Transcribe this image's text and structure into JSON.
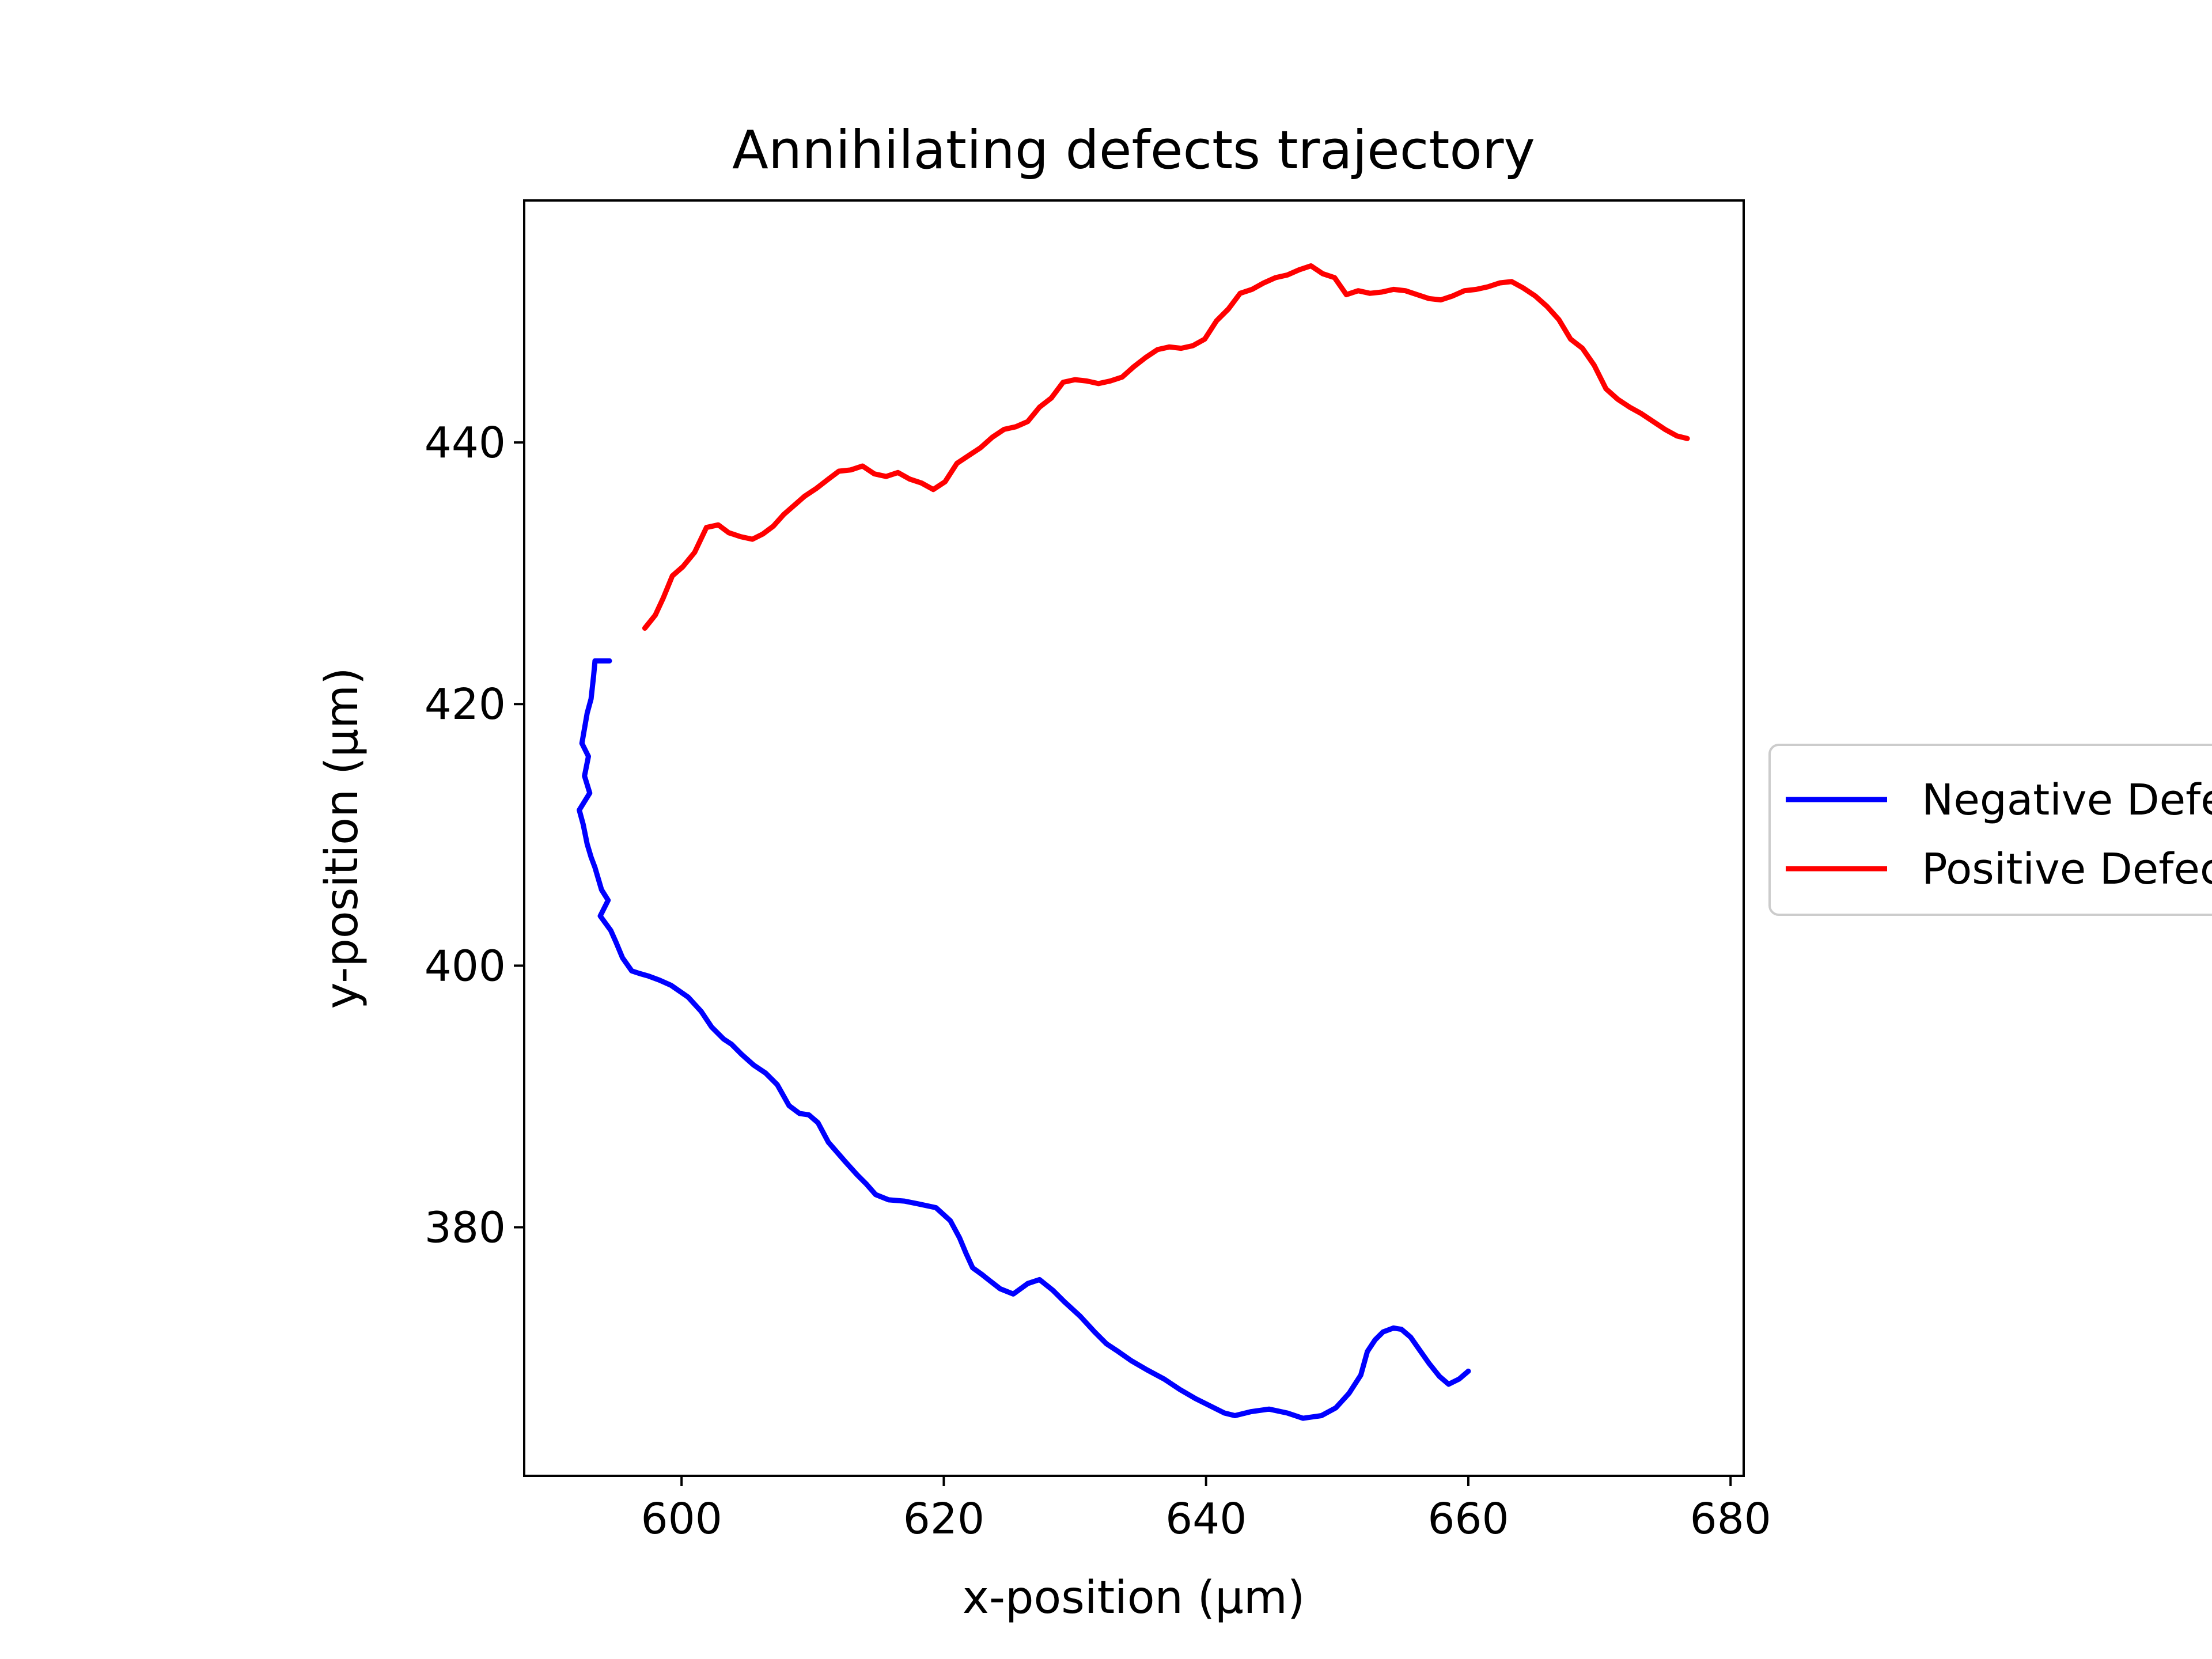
{
  "chart_data": {
    "type": "line",
    "title": "Annihilating defects trajectory",
    "xlabel": "x-position (µm)",
    "ylabel": "y-position (µm)",
    "xlim": [
      588,
      681
    ],
    "ylim": [
      361,
      458.5
    ],
    "xticks": [
      600,
      620,
      640,
      660,
      680
    ],
    "yticks": [
      380,
      400,
      420,
      440
    ],
    "grid": false,
    "legend_position": "right-outside",
    "series": [
      {
        "name": "Negative Defect",
        "color": "#0000ff",
        "x": [
          594.5,
          593.4,
          593.3,
          593.1,
          592.8,
          592.4,
          592.9,
          592.6,
          593.0,
          592.2,
          592.5,
          592.8,
          593.1,
          593.4,
          593.9,
          594.4,
          593.8,
          594.6,
          595.0,
          595.5,
          596.2,
          596.8,
          597.5,
          598.3,
          599.2,
          600.5,
          601.5,
          602.3,
          603.2,
          603.8,
          604.6,
          605.5,
          606.4,
          607.3,
          608.2,
          609.0,
          609.7,
          610.4,
          611.2,
          612.5,
          613.4,
          614.1,
          614.8,
          615.8,
          617.0,
          618.0,
          619.4,
          620.5,
          621.2,
          621.7,
          622.2,
          622.9,
          623.4,
          624.3,
          625.3,
          626.4,
          627.3,
          628.3,
          629.2,
          630.4,
          631.5,
          632.4,
          633.3,
          634.3,
          635.5,
          636.8,
          638.0,
          639.2,
          640.4,
          641.4,
          642.2,
          643.4,
          644.8,
          646.2,
          647.4,
          648.8,
          649.9,
          650.9,
          651.8,
          652.3,
          652.9,
          653.5,
          654.3,
          654.9,
          655.6,
          656.3,
          657.0,
          657.8,
          658.5,
          659.3,
          660.0
        ],
        "y": [
          423.3,
          423.3,
          422.2,
          420.4,
          419.3,
          417.0,
          416.0,
          414.5,
          413.2,
          411.9,
          410.8,
          409.3,
          408.3,
          407.5,
          405.8,
          405.0,
          403.8,
          402.7,
          401.8,
          400.6,
          399.6,
          399.4,
          399.2,
          398.9,
          398.5,
          397.6,
          396.5,
          395.3,
          394.4,
          394.0,
          393.2,
          392.4,
          391.8,
          390.9,
          389.3,
          388.7,
          388.6,
          388.0,
          386.5,
          385.0,
          384.0,
          383.3,
          382.5,
          382.1,
          382.0,
          381.8,
          381.5,
          380.5,
          379.2,
          378.0,
          376.9,
          376.4,
          376.0,
          375.3,
          374.9,
          375.7,
          376.0,
          375.2,
          374.3,
          373.2,
          372.0,
          371.1,
          370.5,
          369.8,
          369.1,
          368.4,
          367.6,
          366.9,
          366.3,
          365.8,
          365.6,
          365.9,
          366.1,
          365.8,
          365.4,
          365.6,
          366.2,
          367.3,
          368.7,
          370.5,
          371.4,
          372.0,
          372.3,
          372.2,
          371.6,
          370.6,
          369.6,
          368.6,
          368.0,
          368.4,
          369.0
        ]
      },
      {
        "name": "Positive Defect",
        "color": "#ff0000",
        "x": [
          597.2,
          598.0,
          598.6,
          599.3,
          600.1,
          601.0,
          601.9,
          602.8,
          603.6,
          604.5,
          605.4,
          606.2,
          607.0,
          607.8,
          608.6,
          609.4,
          610.3,
          611.2,
          612.0,
          612.9,
          613.8,
          614.7,
          615.6,
          616.5,
          617.4,
          618.3,
          619.2,
          620.1,
          621.0,
          621.9,
          622.8,
          623.7,
          624.6,
          625.5,
          626.4,
          627.3,
          628.2,
          629.1,
          630.0,
          630.9,
          631.8,
          632.7,
          633.6,
          634.5,
          635.4,
          636.3,
          637.2,
          638.1,
          639.0,
          639.9,
          640.8,
          641.7,
          642.6,
          643.5,
          644.4,
          645.3,
          646.2,
          647.1,
          648.0,
          648.9,
          649.8,
          650.7,
          651.6,
          652.5,
          653.4,
          654.3,
          655.2,
          656.1,
          657.0,
          657.9,
          658.8,
          659.7,
          660.6,
          661.5,
          662.4,
          663.3,
          664.2,
          665.1,
          666.0,
          666.9,
          667.8,
          668.7,
          669.6,
          670.5,
          671.4,
          672.3,
          673.2,
          674.1,
          675.0,
          675.9,
          676.7
        ],
        "y": [
          425.8,
          426.8,
          428.1,
          429.8,
          430.5,
          431.6,
          433.5,
          433.7,
          433.1,
          432.8,
          432.6,
          433.0,
          433.6,
          434.5,
          435.2,
          435.9,
          436.5,
          437.2,
          437.8,
          437.9,
          438.2,
          437.6,
          437.4,
          437.7,
          437.2,
          436.9,
          436.4,
          437.0,
          438.4,
          439.0,
          439.6,
          440.4,
          441.0,
          441.2,
          441.6,
          442.7,
          443.4,
          444.6,
          444.8,
          444.7,
          444.5,
          444.7,
          445.0,
          445.8,
          446.5,
          447.1,
          447.3,
          447.2,
          447.4,
          447.9,
          449.3,
          450.2,
          451.4,
          451.7,
          452.2,
          452.6,
          452.8,
          453.2,
          453.5,
          452.9,
          452.6,
          451.3,
          451.6,
          451.4,
          451.5,
          451.7,
          451.6,
          451.3,
          451.0,
          450.9,
          451.2,
          451.6,
          451.7,
          451.9,
          452.2,
          452.3,
          451.8,
          451.2,
          450.4,
          449.4,
          447.9,
          447.2,
          445.9,
          444.1,
          443.3,
          442.7,
          442.2,
          441.6,
          441.0,
          440.5,
          440.3
        ]
      }
    ]
  }
}
